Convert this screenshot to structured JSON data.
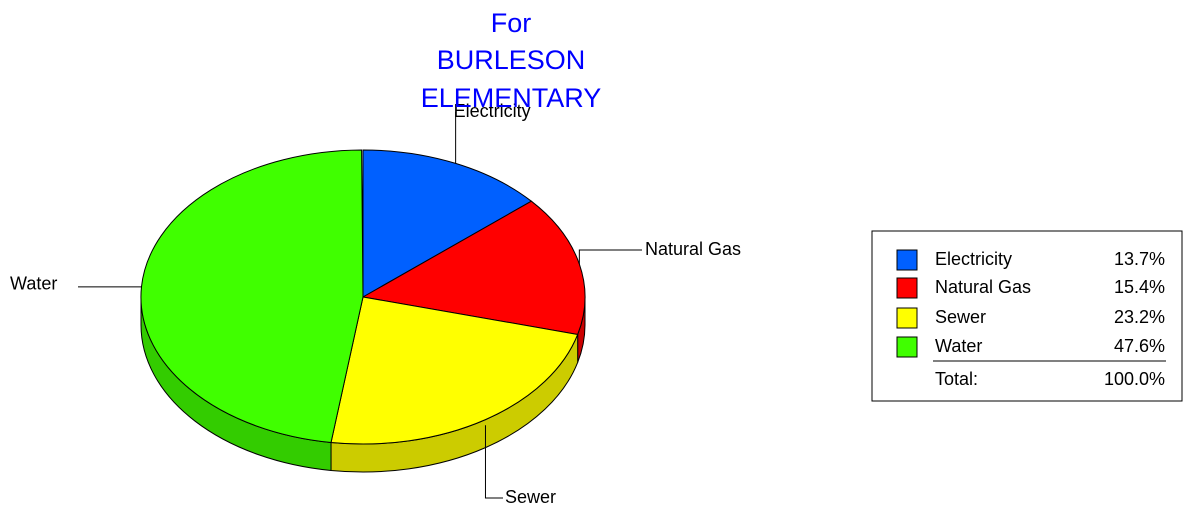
{
  "chart_data": {
    "type": "pie",
    "title": [
      "For",
      "BURLESON",
      "ELEMENTARY"
    ],
    "categories": [
      "Electricity",
      "Natural Gas",
      "Sewer",
      "Water"
    ],
    "values": [
      13.7,
      15.4,
      23.2,
      47.6
    ],
    "value_labels": [
      "13.7%",
      "15.4%",
      "23.2%",
      "47.6%"
    ],
    "colors": [
      "#0060ff",
      "#ff0000",
      "#ffff00",
      "#40ff00"
    ],
    "side_colors": [
      "#0048c0",
      "#cc0000",
      "#cccc00",
      "#33cc00"
    ],
    "total_name": "Total:",
    "total": 100,
    "total_label": "100.0%"
  }
}
